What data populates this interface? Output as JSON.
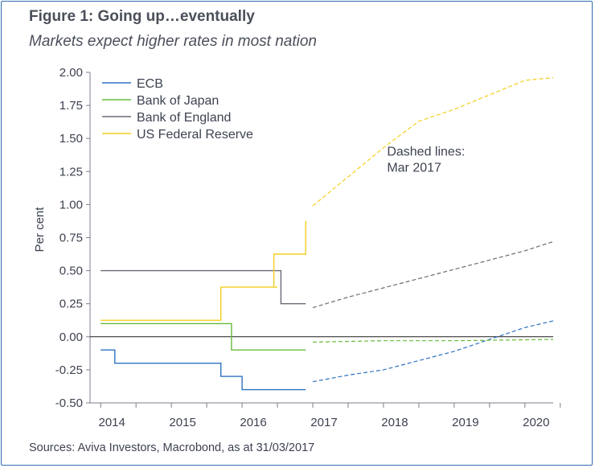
{
  "title": "Figure 1: Going up…eventually",
  "subtitle": "Markets expect higher rates in most nation",
  "source": "Sources: Aviva Investors, Macrobond, as at 31/03/2017",
  "chart_data": {
    "type": "line",
    "ylabel": "Per cent",
    "xlabel": "",
    "ylim": [
      -0.5,
      2.0
    ],
    "xlim": [
      2013.85,
      2020.4
    ],
    "y_ticks": [
      -0.5,
      -0.25,
      0.0,
      0.25,
      0.5,
      0.75,
      1.0,
      1.25,
      1.5,
      1.75,
      2.0
    ],
    "y_tick_labels": [
      "-0.50",
      "-0.25",
      "0.00",
      "0.25",
      "0.50",
      "0.75",
      "1.00",
      "1.25",
      "1.50",
      "1.75",
      "2.00"
    ],
    "x_ticks": [
      2014,
      2015,
      2016,
      2017,
      2018,
      2019,
      2020
    ],
    "x_tick_labels": [
      "2014",
      "2015",
      "2016",
      "2017",
      "2018",
      "2019",
      "2020"
    ],
    "x_tick_marks": [
      2014,
      2014.5,
      2015,
      2015.5,
      2016,
      2016.5,
      2017,
      2017.5,
      2018,
      2018.5,
      2019,
      2019.5,
      2020,
      2020.5
    ],
    "annotation": "Dashed lines:\nMar 2017",
    "annotation_pos": [
      2018.05,
      1.37
    ],
    "legend_placement": "top-left",
    "grid": false,
    "series": [
      {
        "name": "ECB",
        "color": "#2e72c0",
        "solid": [
          [
            2014.0,
            -0.1
          ],
          [
            2014.2,
            -0.1
          ],
          [
            2014.2,
            -0.2
          ],
          [
            2015.7,
            -0.2
          ],
          [
            2015.7,
            -0.3
          ],
          [
            2016.0,
            -0.3
          ],
          [
            2016.0,
            -0.4
          ],
          [
            2016.9,
            -0.4
          ]
        ],
        "dashed": [
          [
            2017.0,
            -0.34
          ],
          [
            2017.5,
            -0.29
          ],
          [
            2018.0,
            -0.25
          ],
          [
            2018.5,
            -0.18
          ],
          [
            2019.0,
            -0.11
          ],
          [
            2019.5,
            -0.02
          ],
          [
            2020.0,
            0.07
          ],
          [
            2020.4,
            0.12
          ]
        ]
      },
      {
        "name": "Bank of Japan",
        "color": "#66bb3a",
        "solid": [
          [
            2014.0,
            0.1
          ],
          [
            2015.85,
            0.1
          ],
          [
            2015.85,
            -0.1
          ],
          [
            2016.9,
            -0.1
          ]
        ],
        "dashed": [
          [
            2017.0,
            -0.04
          ],
          [
            2018.0,
            -0.03
          ],
          [
            2019.0,
            -0.03
          ],
          [
            2020.4,
            -0.02
          ]
        ]
      },
      {
        "name": "Bank of England",
        "color": "#6b6b76",
        "solid": [
          [
            2014.0,
            0.5
          ],
          [
            2016.55,
            0.5
          ],
          [
            2016.55,
            0.25
          ],
          [
            2016.9,
            0.25
          ]
        ],
        "dashed": [
          [
            2017.0,
            0.22
          ],
          [
            2017.5,
            0.3
          ],
          [
            2018.0,
            0.37
          ],
          [
            2018.5,
            0.44
          ],
          [
            2019.0,
            0.51
          ],
          [
            2019.5,
            0.58
          ],
          [
            2020.0,
            0.65
          ],
          [
            2020.4,
            0.72
          ]
        ]
      },
      {
        "name": "US Federal Reserve",
        "color": "#f2cf1e",
        "solid": [
          [
            2014.0,
            0.125
          ],
          [
            2015.7,
            0.125
          ],
          [
            2015.7,
            0.375
          ],
          [
            2016.5,
            0.375
          ],
          [
            2016.5,
            0.375
          ],
          [
            2016.45,
            0.375
          ],
          [
            2016.45,
            0.625
          ],
          [
            2016.9,
            0.625
          ],
          [
            2016.9,
            0.875
          ]
        ],
        "dashed": [
          [
            2017.0,
            0.99
          ],
          [
            2017.5,
            1.21
          ],
          [
            2018.0,
            1.43
          ],
          [
            2018.5,
            1.63
          ],
          [
            2019.0,
            1.72
          ],
          [
            2019.5,
            1.83
          ],
          [
            2020.0,
            1.94
          ],
          [
            2020.4,
            1.96
          ]
        ]
      }
    ]
  }
}
